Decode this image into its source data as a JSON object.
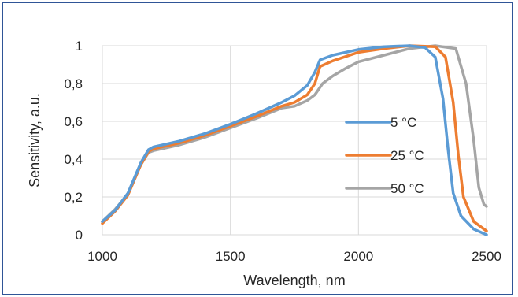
{
  "chart_data": {
    "type": "line",
    "title": "",
    "xlabel": "Wavelength, nm",
    "ylabel": "Sensitivity, a.u.",
    "xlim": [
      1000,
      2500
    ],
    "ylim": [
      0,
      1
    ],
    "x_ticks": [
      "1000",
      "1500",
      "2000",
      "2500"
    ],
    "y_ticks": [
      "0",
      "0,2",
      "0,4",
      "0,6",
      "0,8",
      "1"
    ],
    "grid": true,
    "legend_position": "right",
    "series": [
      {
        "name": "5 °C",
        "color": "#5b9bd5",
        "points": [
          [
            1000,
            0.07
          ],
          [
            1050,
            0.13
          ],
          [
            1100,
            0.22
          ],
          [
            1150,
            0.38
          ],
          [
            1180,
            0.45
          ],
          [
            1200,
            0.465
          ],
          [
            1300,
            0.495
          ],
          [
            1400,
            0.535
          ],
          [
            1500,
            0.585
          ],
          [
            1600,
            0.64
          ],
          [
            1700,
            0.7
          ],
          [
            1750,
            0.735
          ],
          [
            1800,
            0.79
          ],
          [
            1830,
            0.86
          ],
          [
            1850,
            0.925
          ],
          [
            1900,
            0.95
          ],
          [
            2000,
            0.98
          ],
          [
            2100,
            0.995
          ],
          [
            2200,
            1.0
          ],
          [
            2260,
            0.99
          ],
          [
            2300,
            0.94
          ],
          [
            2330,
            0.72
          ],
          [
            2350,
            0.45
          ],
          [
            2370,
            0.22
          ],
          [
            2400,
            0.1
          ],
          [
            2450,
            0.03
          ],
          [
            2500,
            0.0
          ]
        ]
      },
      {
        "name": "25 °C",
        "color": "#ed7d31",
        "points": [
          [
            1000,
            0.06
          ],
          [
            1050,
            0.125
          ],
          [
            1100,
            0.21
          ],
          [
            1150,
            0.37
          ],
          [
            1180,
            0.44
          ],
          [
            1200,
            0.455
          ],
          [
            1300,
            0.485
          ],
          [
            1400,
            0.525
          ],
          [
            1500,
            0.575
          ],
          [
            1600,
            0.625
          ],
          [
            1700,
            0.68
          ],
          [
            1750,
            0.7
          ],
          [
            1800,
            0.74
          ],
          [
            1830,
            0.8
          ],
          [
            1850,
            0.89
          ],
          [
            1900,
            0.92
          ],
          [
            2000,
            0.965
          ],
          [
            2100,
            0.985
          ],
          [
            2200,
            1.0
          ],
          [
            2300,
            0.995
          ],
          [
            2340,
            0.94
          ],
          [
            2370,
            0.7
          ],
          [
            2390,
            0.42
          ],
          [
            2410,
            0.2
          ],
          [
            2450,
            0.07
          ],
          [
            2500,
            0.02
          ]
        ]
      },
      {
        "name": "50 °C",
        "color": "#a5a5a5",
        "points": [
          [
            1000,
            0.07
          ],
          [
            1050,
            0.135
          ],
          [
            1100,
            0.215
          ],
          [
            1150,
            0.37
          ],
          [
            1180,
            0.435
          ],
          [
            1200,
            0.445
          ],
          [
            1300,
            0.475
          ],
          [
            1400,
            0.515
          ],
          [
            1500,
            0.565
          ],
          [
            1600,
            0.615
          ],
          [
            1700,
            0.67
          ],
          [
            1750,
            0.68
          ],
          [
            1800,
            0.71
          ],
          [
            1830,
            0.74
          ],
          [
            1860,
            0.8
          ],
          [
            1900,
            0.84
          ],
          [
            1950,
            0.88
          ],
          [
            2000,
            0.915
          ],
          [
            2100,
            0.95
          ],
          [
            2200,
            0.985
          ],
          [
            2300,
            1.0
          ],
          [
            2380,
            0.985
          ],
          [
            2420,
            0.8
          ],
          [
            2450,
            0.5
          ],
          [
            2470,
            0.25
          ],
          [
            2490,
            0.16
          ],
          [
            2500,
            0.15
          ]
        ]
      }
    ]
  }
}
